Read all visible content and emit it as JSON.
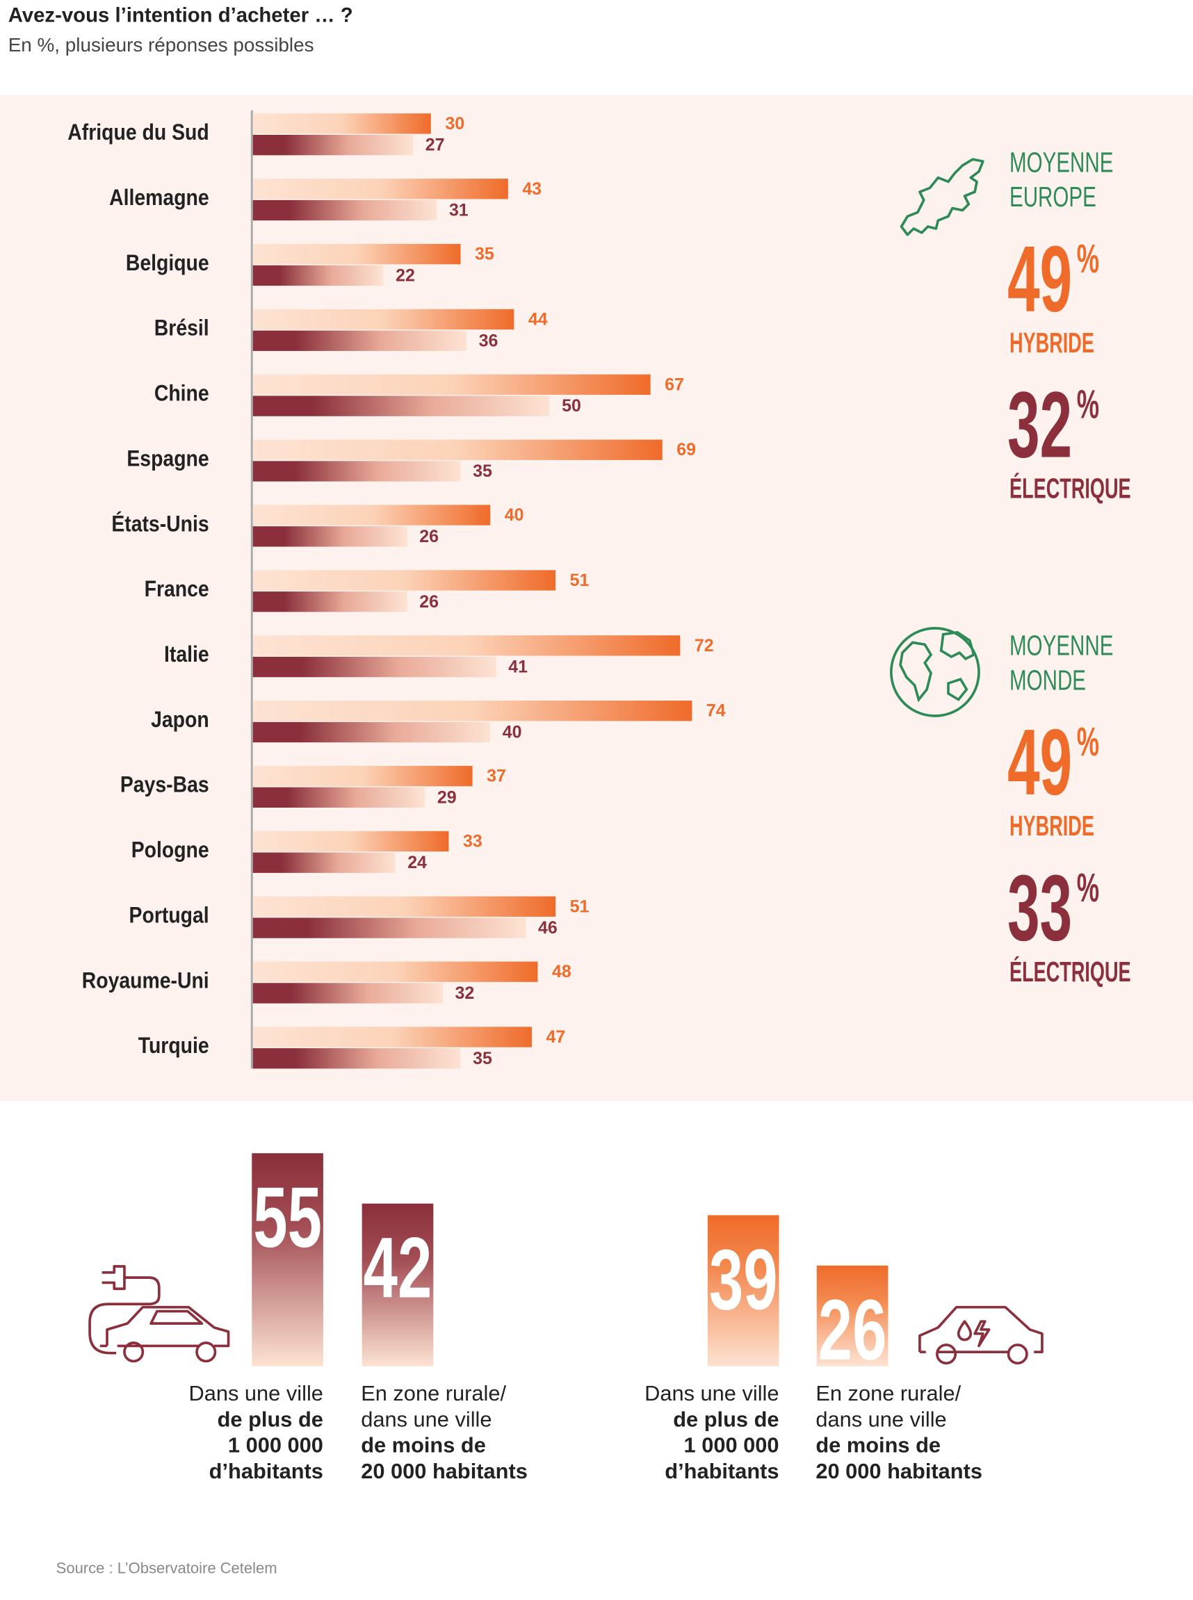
{
  "chart_data": [
    {
      "type": "hbar",
      "title": "Avez-vous l’intention d’acheter … ?",
      "subtitle": "En %, plusieurs réponses possibles",
      "categories": [
        "Afrique du Sud",
        "Allemagne",
        "Belgique",
        "Brésil",
        "Chine",
        "Espagne",
        "États-Unis",
        "France",
        "Italie",
        "Japon",
        "Pays-Bas",
        "Pologne",
        "Portugal",
        "Royaume-Uni",
        "Turquie"
      ],
      "series": [
        {
          "color": "#ef6b2a",
          "values": [
            30,
            43,
            35,
            44,
            67,
            69,
            40,
            51,
            72,
            74,
            37,
            33,
            51,
            48,
            47
          ]
        },
        {
          "color": "#8a2f3b",
          "values": [
            27,
            31,
            22,
            36,
            50,
            35,
            26,
            26,
            41,
            40,
            29,
            24,
            46,
            32,
            35
          ]
        }
      ]
    },
    {
      "type": "bar",
      "categories": [
        [
          {
            "text": "Dans une ville",
            "bold": false
          },
          {
            "text": "de plus de",
            "bold": true
          },
          {
            "text": "1 000 000",
            "bold": true
          },
          {
            "text": "d’habitants",
            "bold": true
          }
        ],
        [
          {
            "text": "En zone rurale/",
            "bold": false
          },
          {
            "text": "dans une ville",
            "bold": false
          },
          {
            "text": "de moins de",
            "bold": true
          },
          {
            "text": "20 000 habitants",
            "bold": true
          }
        ],
        [
          {
            "text": "Dans une ville",
            "bold": false
          },
          {
            "text": "de plus de",
            "bold": true
          },
          {
            "text": "1 000 000",
            "bold": true
          },
          {
            "text": "d’habitants",
            "bold": true
          }
        ],
        [
          {
            "text": "En zone rurale/",
            "bold": false
          },
          {
            "text": "dans une ville",
            "bold": false
          },
          {
            "text": "de moins de",
            "bold": true
          },
          {
            "text": "20 000 habitants",
            "bold": true
          }
        ]
      ],
      "values": [
        55,
        42,
        39,
        26
      ],
      "colors": [
        "#8a2f3b",
        "#8a2f3b",
        "#ef6b2a",
        "#ef6b2a"
      ]
    }
  ],
  "averages": [
    {
      "lines": [
        "MOYENNE",
        "EUROPE"
      ],
      "hybrid": {
        "value": 49,
        "unit": "%",
        "label": "HYBRIDE"
      },
      "electric": {
        "value": 32,
        "unit": "%",
        "label": "ÉLECTRIQUE"
      }
    },
    {
      "lines": [
        "MOYENNE",
        "MONDE"
      ],
      "hybrid": {
        "value": 49,
        "unit": "%",
        "label": "HYBRIDE"
      },
      "electric": {
        "value": 33,
        "unit": "%",
        "label": "ÉLECTRIQUE"
      }
    }
  ],
  "source": "Source : L’Observatoire Cetelem"
}
